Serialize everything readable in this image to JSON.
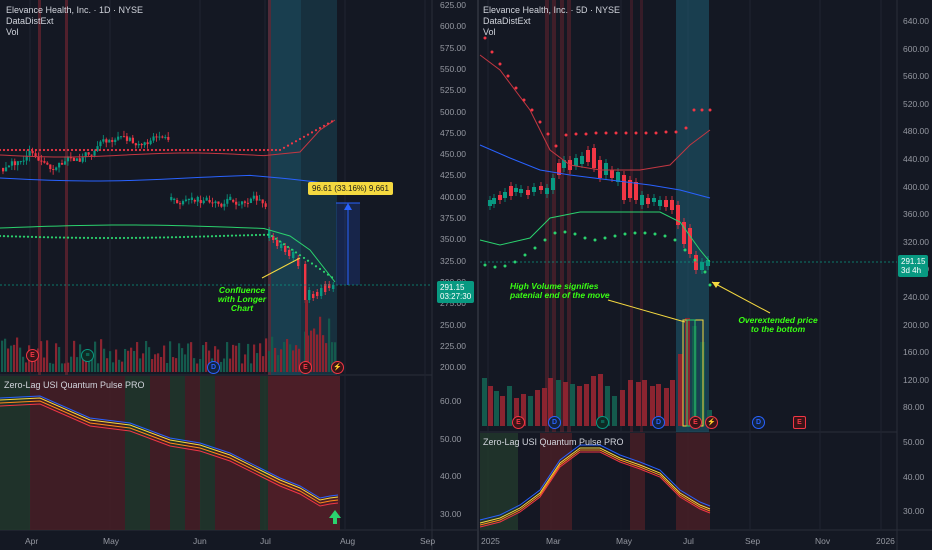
{
  "left": {
    "title": "Elevance Health, Inc. · 1D · NYSE",
    "indicator": "DataDistExt",
    "vol_label": "Vol",
    "osc_title": "Zero-Lag USI Quantum Pulse PRO",
    "price_axis": [
      "625.00",
      "600.00",
      "575.00",
      "550.00",
      "525.00",
      "500.00",
      "475.00",
      "450.00",
      "425.00",
      "400.00",
      "375.00",
      "350.00",
      "325.00",
      "300.00",
      "275.00",
      "250.00",
      "225.00",
      "200.00"
    ],
    "osc_axis": [
      "60.00",
      "50.00",
      "40.00",
      "30.00"
    ],
    "time_axis": [
      "Apr",
      "May",
      "Jun",
      "Jul",
      "Aug",
      "Sep"
    ],
    "last_price": "291.15",
    "countdown": "03:27:30",
    "measure_label": "96.61 (33.16%) 9,661",
    "annotation": "Confluence with Longer Chart"
  },
  "right": {
    "title": "Elevance Health, Inc. · 5D · NYSE",
    "indicator": "DataDistExt",
    "vol_label": "Vol",
    "osc_title": "Zero-Lag USI Quantum Pulse PRO",
    "price_axis": [
      "640.00",
      "600.00",
      "560.00",
      "520.00",
      "480.00",
      "440.00",
      "400.00",
      "360.00",
      "320.00",
      "280.00",
      "240.00",
      "200.00",
      "160.00",
      "120.00",
      "80.00"
    ],
    "osc_axis": [
      "50.00",
      "40.00",
      "30.00"
    ],
    "time_axis": [
      "2025",
      "Mar",
      "May",
      "Jul",
      "Sep",
      "Nov",
      "2026"
    ],
    "last_price": "291.15",
    "countdown": "3d 4h",
    "annotation_volume": "High Volume signifies patenial end of the move",
    "annotation_overextended": "Overextended price to the bottom"
  },
  "colors": {
    "bg": "#141823",
    "up": "#089981",
    "down": "#f23645",
    "highlight": "#1e5f74",
    "annotation": "#39ff14"
  }
}
